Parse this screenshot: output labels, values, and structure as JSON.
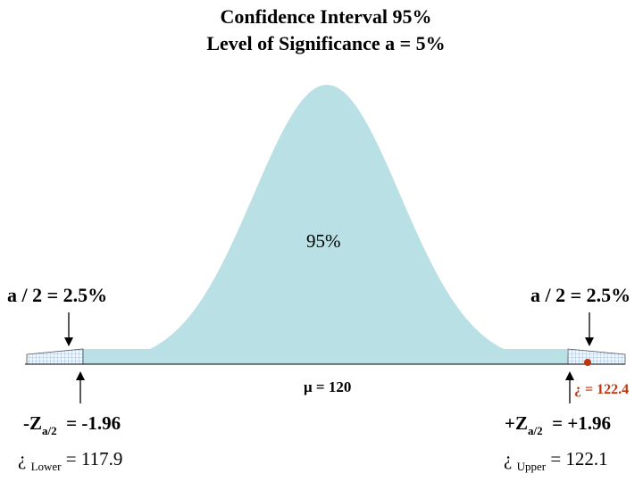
{
  "title": {
    "line1": "Confidence Interval   95%",
    "line2": "Level of Significance  a = 5%"
  },
  "center_region_label": "95%",
  "tail_left": {
    "label": "a / 2 = 2.5%"
  },
  "tail_right": {
    "label": "a / 2 = 2.5%"
  },
  "mean_label": "μ = 120",
  "sample_mean_label": "¿ = 122.4",
  "z_left": {
    "prefix": "-Z",
    "sub": "a/2",
    "suffix": "  = -1.96"
  },
  "z_right": {
    "prefix": "+Z",
    "sub": "a/2",
    "suffix": "  = +1.96"
  },
  "x_lower": {
    "prefix": "¿ ",
    "sub": "Lower",
    "suffix": " = 117.9"
  },
  "x_upper": {
    "prefix": "¿ ",
    "sub": "Upper",
    "suffix": " = 122.1"
  },
  "colors": {
    "curve_fill": "#b9e0e4",
    "tail_fill": "#eef6ff",
    "tail_grid": "#7a9cc0",
    "sample_mean_marker": "#c0360a",
    "axis": "#000000"
  }
}
